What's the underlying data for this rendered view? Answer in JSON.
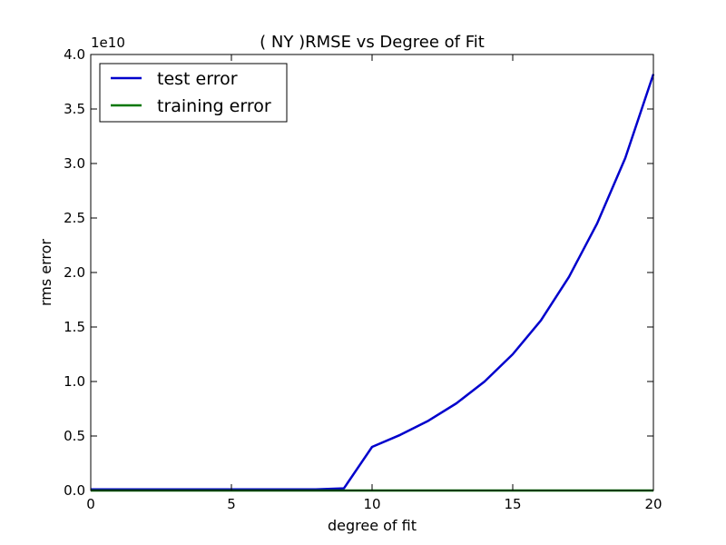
{
  "chart_data": {
    "type": "line",
    "title": "(  NY  )RMSE vs Degree of Fit",
    "xlabel": "degree of fit",
    "ylabel": "rms error",
    "y_offset_label": "1e10",
    "xlim": [
      0,
      20
    ],
    "ylim": [
      0,
      4.0
    ],
    "y_scale_factor": 10000000000.0,
    "x_ticks": [
      0,
      5,
      10,
      15,
      20
    ],
    "x_tick_labels": [
      "0",
      "5",
      "10",
      "15",
      "20"
    ],
    "y_ticks": [
      0,
      0.5,
      1.0,
      1.5,
      2.0,
      2.5,
      3.0,
      3.5,
      4.0
    ],
    "y_tick_labels": [
      "0.0",
      "0.5",
      "1.0",
      "1.5",
      "2.0",
      "2.5",
      "3.0",
      "3.5",
      "4.0"
    ],
    "grid": false,
    "legend_position": "top-left",
    "series": [
      {
        "name": "test error",
        "color": "#0000cc",
        "x": [
          0,
          1,
          2,
          3,
          4,
          5,
          6,
          7,
          8,
          9,
          10,
          11,
          12,
          13,
          14,
          15,
          16,
          17,
          18,
          19,
          20
        ],
        "y": [
          0.01,
          0.01,
          0.01,
          0.01,
          0.01,
          0.01,
          0.01,
          0.01,
          0.01,
          0.02,
          0.4,
          0.51,
          0.64,
          0.8,
          1.0,
          1.25,
          1.56,
          1.96,
          2.45,
          3.05,
          3.82
        ]
      },
      {
        "name": "training error",
        "color": "#007700",
        "x": [
          0,
          1,
          2,
          3,
          4,
          5,
          6,
          7,
          8,
          9,
          10,
          11,
          12,
          13,
          14,
          15,
          16,
          17,
          18,
          19,
          20
        ],
        "y": [
          0,
          0,
          0,
          0,
          0,
          0,
          0,
          0,
          0,
          0,
          0,
          0,
          0,
          0,
          0,
          0,
          0,
          0,
          0,
          0,
          0
        ]
      }
    ]
  }
}
